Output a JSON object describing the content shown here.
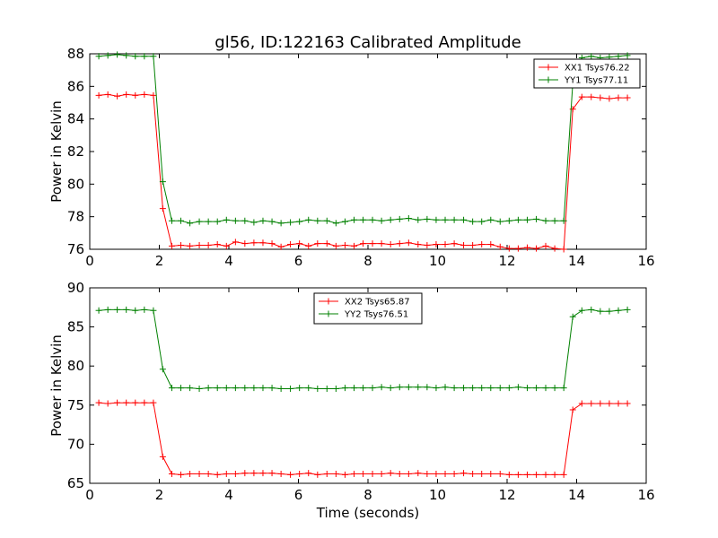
{
  "figure": {
    "title": "gl56, ID:122163 Calibrated Amplitude",
    "xlabel": "Time (seconds)"
  },
  "chart_data": [
    {
      "type": "line",
      "title": "gl56, ID:122163 Calibrated Amplitude",
      "xlabel": "",
      "ylabel": "Power in Kelvin",
      "xlim": [
        0,
        16
      ],
      "ylim": [
        76,
        88
      ],
      "xticks": [
        0,
        2,
        4,
        6,
        8,
        10,
        12,
        14,
        16
      ],
      "yticks": [
        76,
        78,
        80,
        82,
        84,
        86,
        88
      ],
      "grid": false,
      "legend_position": "top-right",
      "x": [
        0.26,
        0.52,
        0.79,
        1.05,
        1.31,
        1.57,
        1.83,
        2.1,
        2.36,
        2.62,
        2.88,
        3.15,
        3.41,
        3.67,
        3.93,
        4.19,
        4.46,
        4.72,
        4.98,
        5.24,
        5.5,
        5.77,
        6.03,
        6.29,
        6.55,
        6.82,
        7.08,
        7.34,
        7.6,
        7.86,
        8.13,
        8.39,
        8.65,
        8.91,
        9.17,
        9.44,
        9.7,
        9.96,
        10.22,
        10.48,
        10.75,
        11.01,
        11.27,
        11.53,
        11.8,
        12.06,
        12.32,
        12.58,
        12.84,
        13.11,
        13.37,
        13.63,
        13.89,
        14.15,
        14.42,
        14.68,
        14.94,
        15.2,
        15.46
      ],
      "series": [
        {
          "name": "XX1 Tsys76.22",
          "color": "#ff0000",
          "values": [
            85.45,
            85.5,
            85.4,
            85.5,
            85.45,
            85.5,
            85.45,
            78.5,
            76.2,
            76.25,
            76.2,
            76.25,
            76.25,
            76.3,
            76.2,
            76.45,
            76.35,
            76.4,
            76.4,
            76.35,
            76.15,
            76.3,
            76.35,
            76.2,
            76.35,
            76.35,
            76.2,
            76.25,
            76.2,
            76.35,
            76.35,
            76.35,
            76.3,
            76.35,
            76.4,
            76.3,
            76.25,
            76.3,
            76.3,
            76.35,
            76.25,
            76.25,
            76.3,
            76.3,
            76.15,
            76.05,
            76.05,
            76.1,
            76.05,
            76.2,
            76.05,
            76.0,
            84.6,
            85.35,
            85.35,
            85.3,
            85.25,
            85.3,
            85.3
          ]
        },
        {
          "name": "YY1 Tsys77.11",
          "color": "#008000",
          "values": [
            87.85,
            87.9,
            87.95,
            87.9,
            87.85,
            87.85,
            87.85,
            80.15,
            77.75,
            77.75,
            77.6,
            77.7,
            77.7,
            77.7,
            77.8,
            77.75,
            77.75,
            77.65,
            77.75,
            77.7,
            77.6,
            77.65,
            77.7,
            77.8,
            77.75,
            77.75,
            77.6,
            77.7,
            77.8,
            77.8,
            77.8,
            77.75,
            77.8,
            77.85,
            77.9,
            77.8,
            77.85,
            77.8,
            77.8,
            77.8,
            77.8,
            77.7,
            77.7,
            77.8,
            77.7,
            77.75,
            77.8,
            77.8,
            77.85,
            77.75,
            77.75,
            77.75,
            86.2,
            87.75,
            87.85,
            87.75,
            87.8,
            87.85,
            87.9
          ]
        }
      ]
    },
    {
      "type": "line",
      "title": "",
      "xlabel": "Time (seconds)",
      "ylabel": "Power in Kelvin",
      "xlim": [
        0,
        16
      ],
      "ylim": [
        65,
        90
      ],
      "xticks": [
        0,
        2,
        4,
        6,
        8,
        10,
        12,
        14,
        16
      ],
      "yticks": [
        65,
        70,
        75,
        80,
        85,
        90
      ],
      "grid": false,
      "legend_position": "top-center",
      "x": [
        0.26,
        0.52,
        0.79,
        1.05,
        1.31,
        1.57,
        1.83,
        2.1,
        2.36,
        2.62,
        2.88,
        3.15,
        3.41,
        3.67,
        3.93,
        4.19,
        4.46,
        4.72,
        4.98,
        5.24,
        5.5,
        5.77,
        6.03,
        6.29,
        6.55,
        6.82,
        7.08,
        7.34,
        7.6,
        7.86,
        8.13,
        8.39,
        8.65,
        8.91,
        9.17,
        9.44,
        9.7,
        9.96,
        10.22,
        10.48,
        10.75,
        11.01,
        11.27,
        11.53,
        11.8,
        12.06,
        12.32,
        12.58,
        12.84,
        13.11,
        13.37,
        13.63,
        13.89,
        14.15,
        14.42,
        14.68,
        14.94,
        15.2,
        15.46
      ],
      "series": [
        {
          "name": "XX2 Tsys65.87",
          "color": "#ff0000",
          "values": [
            75.3,
            75.2,
            75.3,
            75.3,
            75.3,
            75.3,
            75.3,
            68.4,
            66.2,
            66.1,
            66.2,
            66.2,
            66.2,
            66.1,
            66.2,
            66.2,
            66.3,
            66.3,
            66.3,
            66.3,
            66.2,
            66.1,
            66.2,
            66.3,
            66.1,
            66.2,
            66.2,
            66.1,
            66.2,
            66.2,
            66.2,
            66.2,
            66.3,
            66.2,
            66.2,
            66.3,
            66.2,
            66.2,
            66.2,
            66.2,
            66.3,
            66.2,
            66.2,
            66.2,
            66.2,
            66.1,
            66.1,
            66.1,
            66.1,
            66.1,
            66.1,
            66.1,
            74.4,
            75.2,
            75.2,
            75.2,
            75.2,
            75.2,
            75.2
          ]
        },
        {
          "name": "YY2 Tsys76.51",
          "color": "#008000",
          "values": [
            87.1,
            87.2,
            87.2,
            87.2,
            87.1,
            87.2,
            87.1,
            79.6,
            77.2,
            77.2,
            77.2,
            77.1,
            77.2,
            77.2,
            77.2,
            77.2,
            77.2,
            77.2,
            77.2,
            77.2,
            77.1,
            77.1,
            77.2,
            77.2,
            77.1,
            77.1,
            77.1,
            77.2,
            77.2,
            77.2,
            77.2,
            77.3,
            77.2,
            77.3,
            77.3,
            77.3,
            77.3,
            77.2,
            77.3,
            77.2,
            77.2,
            77.2,
            77.2,
            77.2,
            77.2,
            77.2,
            77.3,
            77.2,
            77.2,
            77.2,
            77.2,
            77.2,
            86.3,
            87.1,
            87.2,
            87.0,
            87.0,
            87.1,
            87.2
          ]
        }
      ]
    }
  ]
}
